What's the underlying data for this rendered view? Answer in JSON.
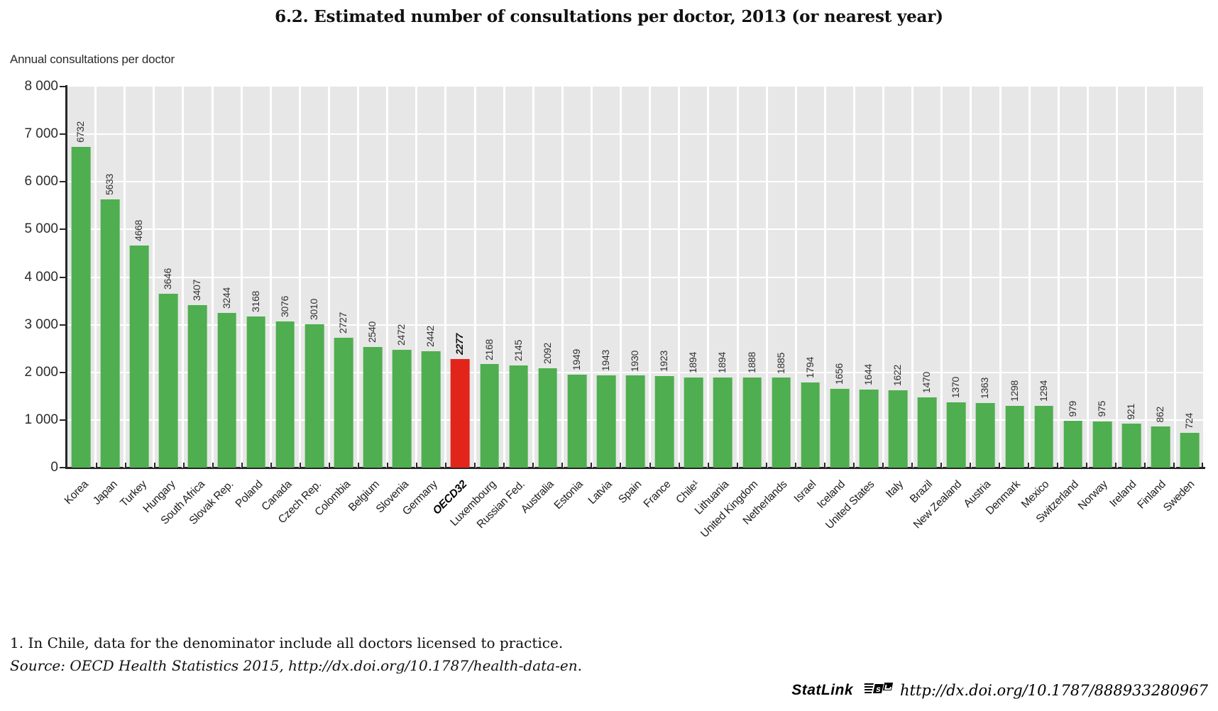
{
  "header": {
    "title": "6.2.  Estimated number of consultations per doctor, 2013 (or nearest year)"
  },
  "chart_data": {
    "type": "bar",
    "title": "6.2.  Estimated number of consultations per doctor, 2013 (or nearest year)",
    "ylabel": "Annual consultations per doctor",
    "xlabel": "",
    "ylim": [
      0,
      8000
    ],
    "ytick_step": 1000,
    "ytick_labels": [
      "8 000",
      "7 000",
      "6 000",
      "5 000",
      "4 000",
      "3 000",
      "2 000",
      "1 000",
      "0"
    ],
    "grid": true,
    "legend_position": "none",
    "categories": [
      "Korea",
      "Japan",
      "Turkey",
      "Hungary",
      "South Africa",
      "Slovak Rep.",
      "Poland",
      "Canada",
      "Czech Rep.",
      "Colombia",
      "Belgium",
      "Slovenia",
      "Germany",
      "OECD32",
      "Luxembourg",
      "Russian Fed.",
      "Australia",
      "Estonia",
      "Latvia",
      "Spain",
      "France",
      "Chile¹",
      "Lithuania",
      "United Kingdom",
      "Netherlands",
      "Israel",
      "Iceland",
      "United States",
      "Italy",
      "Brazil",
      "New Zealand",
      "Austria",
      "Denmark",
      "Mexico",
      "Switzerland",
      "Norway",
      "Ireland",
      "Finland",
      "Sweden"
    ],
    "values": [
      6732,
      5633,
      4668,
      3646,
      3407,
      3244,
      3168,
      3076,
      3010,
      2727,
      2540,
      2472,
      2442,
      2277,
      2168,
      2145,
      2092,
      1949,
      1943,
      1930,
      1923,
      1894,
      1894,
      1888,
      1885,
      1794,
      1656,
      1644,
      1622,
      1470,
      1370,
      1363,
      1298,
      1294,
      979,
      975,
      921,
      862,
      724
    ],
    "highlight_index": 13,
    "colors": {
      "bar": "#4fae4f",
      "highlight": "#e1251b",
      "plot_bg": "#e7e7e7",
      "grid": "#ffffff",
      "axis": "#262626"
    }
  },
  "notes": {
    "footnote": "1.   In Chile, data for the denominator include all doctors licensed to practice.",
    "source": "Source:  OECD Health Statistics 2015, http://dx.doi.org/10.1787/health-data-en."
  },
  "statlink": {
    "label": "StatLink",
    "url": "http://dx.doi.org/10.1787/888933280967"
  }
}
